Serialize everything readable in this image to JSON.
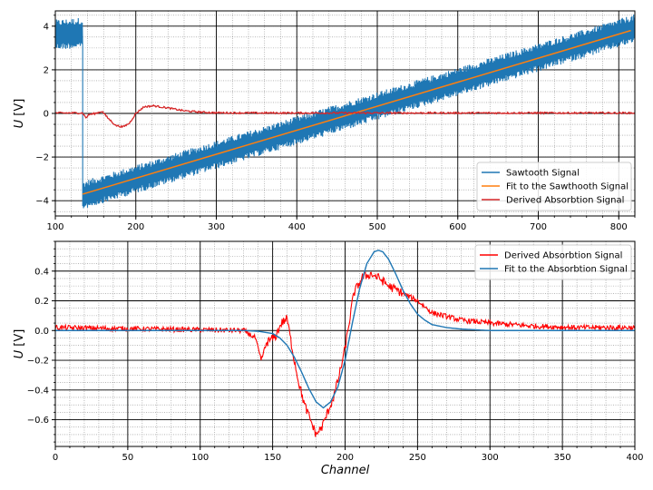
{
  "chart_data": [
    {
      "type": "line",
      "panel": "top",
      "title": "",
      "xlabel": "",
      "ylabel": "U [V]",
      "xlim": [
        100,
        820
      ],
      "ylim": [
        -4.7,
        4.7
      ],
      "xticks": [
        100,
        200,
        300,
        400,
        500,
        600,
        700,
        800
      ],
      "yticks": [
        -4,
        -2,
        0,
        2,
        4
      ],
      "grid": "major solid black, minor dotted grey",
      "legend_position": "bottom-right",
      "series": [
        {
          "name": "Sawtooth Signal",
          "color": "#1f77b4",
          "segments": [
            {
              "x": [
                100,
                134
              ],
              "y_center": [
                3.6,
                3.7
              ],
              "noise_amplitude": 0.7
            },
            {
              "x": [
                134,
                820
              ],
              "y_center": [
                -3.75,
                3.9
              ],
              "noise_amplitude": 0.65
            }
          ]
        },
        {
          "name": "Fit to the Sawthooth Signal",
          "color": "#ff7f0e",
          "x": [
            134,
            815
          ],
          "y": [
            -3.7,
            3.8
          ]
        },
        {
          "name": "Derived Absorbtion Signal",
          "color": "#d62728",
          "x": [
            100,
            134,
            138,
            142,
            150,
            158,
            165,
            175,
            184,
            192,
            200,
            210,
            222,
            240,
            260,
            280,
            300,
            350,
            820
          ],
          "y": [
            0.02,
            0.02,
            -0.2,
            -0.05,
            0.0,
            0.1,
            -0.2,
            -0.55,
            -0.62,
            -0.45,
            0.0,
            0.3,
            0.35,
            0.25,
            0.12,
            0.06,
            0.03,
            0.02,
            0.02
          ]
        }
      ]
    },
    {
      "type": "line",
      "panel": "bottom",
      "title": "",
      "xlabel": "Channel",
      "ylabel": "U [V]",
      "xlim": [
        0,
        400
      ],
      "ylim": [
        -0.78,
        0.6
      ],
      "xticks": [
        0,
        50,
        100,
        150,
        200,
        250,
        300,
        350,
        400
      ],
      "yticks": [
        -0.6,
        -0.4,
        -0.2,
        0.0,
        0.2,
        0.4
      ],
      "ytick_labels": [
        "−0.6",
        "−0.4",
        "−0.2",
        "0.0",
        "0.2",
        "0.4"
      ],
      "grid": "major solid black, minor dotted grey",
      "legend_position": "top-right",
      "series": [
        {
          "name": "Derived Absorbtion Signal",
          "color": "#ff0000",
          "x": [
            0,
            130,
            138,
            142,
            146,
            152,
            156,
            160,
            164,
            168,
            172,
            176,
            180,
            184,
            188,
            192,
            196,
            200,
            206,
            212,
            218,
            224,
            230,
            240,
            250,
            260,
            280,
            300,
            330,
            360,
            400
          ],
          "y": [
            0.02,
            0.0,
            -0.05,
            -0.2,
            -0.08,
            -0.04,
            0.05,
            0.08,
            -0.15,
            -0.35,
            -0.5,
            -0.6,
            -0.7,
            -0.65,
            -0.55,
            -0.45,
            -0.3,
            -0.12,
            0.25,
            0.36,
            0.38,
            0.35,
            0.3,
            0.25,
            0.2,
            0.12,
            0.07,
            0.05,
            0.03,
            0.02,
            0.02
          ]
        },
        {
          "name": "Fit to the Absorbtion Signal",
          "color": "#1f77b4",
          "x": [
            0,
            130,
            140,
            150,
            155,
            160,
            165,
            170,
            175,
            180,
            185,
            190,
            195,
            200,
            205,
            210,
            215,
            220,
            223,
            226,
            230,
            235,
            240,
            245,
            250,
            255,
            260,
            270,
            280,
            300,
            400
          ],
          "y": [
            0.0,
            0.0,
            -0.005,
            -0.02,
            -0.05,
            -0.1,
            -0.18,
            -0.28,
            -0.39,
            -0.48,
            -0.52,
            -0.48,
            -0.38,
            -0.2,
            0.05,
            0.28,
            0.45,
            0.53,
            0.54,
            0.53,
            0.48,
            0.38,
            0.27,
            0.18,
            0.11,
            0.07,
            0.04,
            0.02,
            0.01,
            0.0,
            0.0
          ]
        }
      ]
    }
  ]
}
